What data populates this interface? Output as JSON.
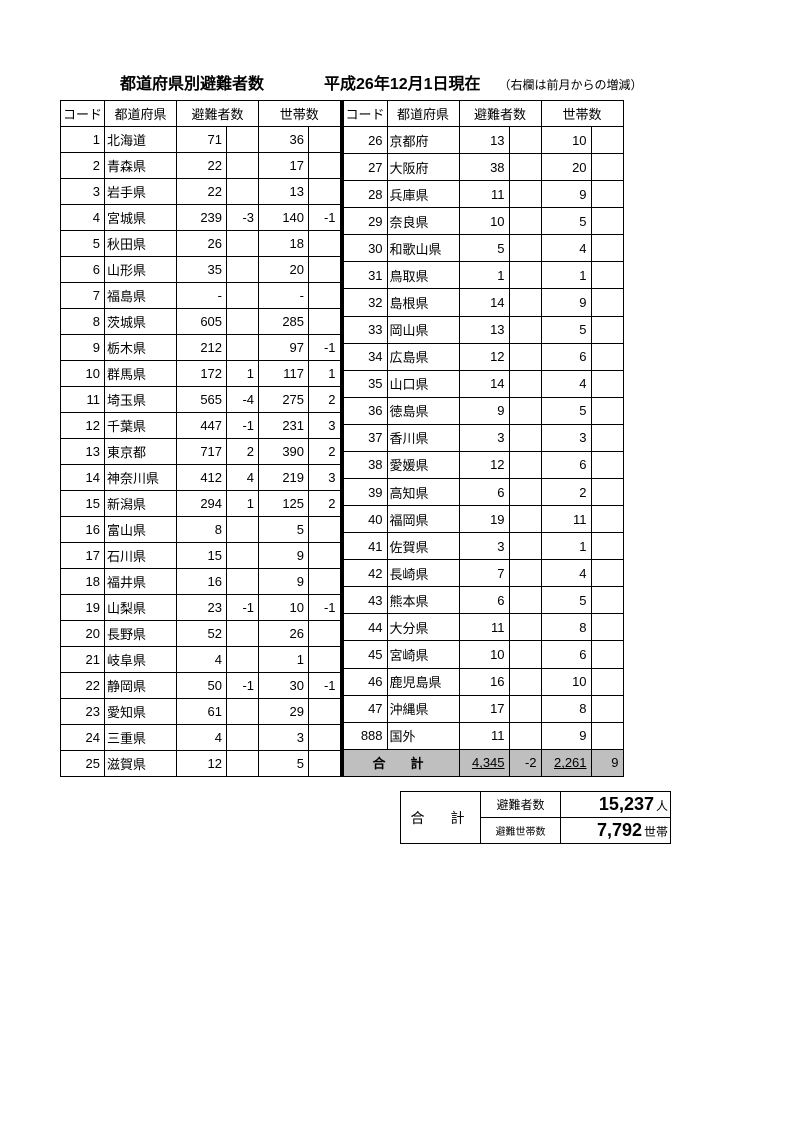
{
  "header": {
    "title": "都道府県別避難者数",
    "date": "平成26年12月1日現在",
    "note": "（右欄は前月からの増減）"
  },
  "columns": {
    "code": "コード",
    "pref": "都道府県",
    "count": "避難者数",
    "households": "世帯数"
  },
  "left_rows": [
    {
      "code": "1",
      "pref": "北海道",
      "cnt": "71",
      "dcnt": "",
      "hh": "36",
      "dhh": ""
    },
    {
      "code": "2",
      "pref": "青森県",
      "cnt": "22",
      "dcnt": "",
      "hh": "17",
      "dhh": ""
    },
    {
      "code": "3",
      "pref": "岩手県",
      "cnt": "22",
      "dcnt": "",
      "hh": "13",
      "dhh": ""
    },
    {
      "code": "4",
      "pref": "宮城県",
      "cnt": "239",
      "dcnt": "-3",
      "hh": "140",
      "dhh": "-1"
    },
    {
      "code": "5",
      "pref": "秋田県",
      "cnt": "26",
      "dcnt": "",
      "hh": "18",
      "dhh": ""
    },
    {
      "code": "6",
      "pref": "山形県",
      "cnt": "35",
      "dcnt": "",
      "hh": "20",
      "dhh": ""
    },
    {
      "code": "7",
      "pref": "福島県",
      "cnt": "-",
      "dcnt": "",
      "hh": "-",
      "dhh": ""
    },
    {
      "code": "8",
      "pref": "茨城県",
      "cnt": "605",
      "dcnt": "",
      "hh": "285",
      "dhh": ""
    },
    {
      "code": "9",
      "pref": "栃木県",
      "cnt": "212",
      "dcnt": "",
      "hh": "97",
      "dhh": "-1"
    },
    {
      "code": "10",
      "pref": "群馬県",
      "cnt": "172",
      "dcnt": "1",
      "hh": "117",
      "dhh": "1"
    },
    {
      "code": "11",
      "pref": "埼玉県",
      "cnt": "565",
      "dcnt": "-4",
      "hh": "275",
      "dhh": "2"
    },
    {
      "code": "12",
      "pref": "千葉県",
      "cnt": "447",
      "dcnt": "-1",
      "hh": "231",
      "dhh": "3"
    },
    {
      "code": "13",
      "pref": "東京都",
      "cnt": "717",
      "dcnt": "2",
      "hh": "390",
      "dhh": "2"
    },
    {
      "code": "14",
      "pref": "神奈川県",
      "cnt": "412",
      "dcnt": "4",
      "hh": "219",
      "dhh": "3"
    },
    {
      "code": "15",
      "pref": "新潟県",
      "cnt": "294",
      "dcnt": "1",
      "hh": "125",
      "dhh": "2"
    },
    {
      "code": "16",
      "pref": "富山県",
      "cnt": "8",
      "dcnt": "",
      "hh": "5",
      "dhh": ""
    },
    {
      "code": "17",
      "pref": "石川県",
      "cnt": "15",
      "dcnt": "",
      "hh": "9",
      "dhh": ""
    },
    {
      "code": "18",
      "pref": "福井県",
      "cnt": "16",
      "dcnt": "",
      "hh": "9",
      "dhh": ""
    },
    {
      "code": "19",
      "pref": "山梨県",
      "cnt": "23",
      "dcnt": "-1",
      "hh": "10",
      "dhh": "-1"
    },
    {
      "code": "20",
      "pref": "長野県",
      "cnt": "52",
      "dcnt": "",
      "hh": "26",
      "dhh": ""
    },
    {
      "code": "21",
      "pref": "岐阜県",
      "cnt": "4",
      "dcnt": "",
      "hh": "1",
      "dhh": ""
    },
    {
      "code": "22",
      "pref": "静岡県",
      "cnt": "50",
      "dcnt": "-1",
      "hh": "30",
      "dhh": "-1"
    },
    {
      "code": "23",
      "pref": "愛知県",
      "cnt": "61",
      "dcnt": "",
      "hh": "29",
      "dhh": ""
    },
    {
      "code": "24",
      "pref": "三重県",
      "cnt": "4",
      "dcnt": "",
      "hh": "3",
      "dhh": ""
    },
    {
      "code": "25",
      "pref": "滋賀県",
      "cnt": "12",
      "dcnt": "",
      "hh": "5",
      "dhh": ""
    }
  ],
  "right_rows": [
    {
      "code": "26",
      "pref": "京都府",
      "cnt": "13",
      "dcnt": "",
      "hh": "10",
      "dhh": ""
    },
    {
      "code": "27",
      "pref": "大阪府",
      "cnt": "38",
      "dcnt": "",
      "hh": "20",
      "dhh": ""
    },
    {
      "code": "28",
      "pref": "兵庫県",
      "cnt": "11",
      "dcnt": "",
      "hh": "9",
      "dhh": ""
    },
    {
      "code": "29",
      "pref": "奈良県",
      "cnt": "10",
      "dcnt": "",
      "hh": "5",
      "dhh": ""
    },
    {
      "code": "30",
      "pref": "和歌山県",
      "cnt": "5",
      "dcnt": "",
      "hh": "4",
      "dhh": ""
    },
    {
      "code": "31",
      "pref": "鳥取県",
      "cnt": "1",
      "dcnt": "",
      "hh": "1",
      "dhh": ""
    },
    {
      "code": "32",
      "pref": "島根県",
      "cnt": "14",
      "dcnt": "",
      "hh": "9",
      "dhh": ""
    },
    {
      "code": "33",
      "pref": "岡山県",
      "cnt": "13",
      "dcnt": "",
      "hh": "5",
      "dhh": ""
    },
    {
      "code": "34",
      "pref": "広島県",
      "cnt": "12",
      "dcnt": "",
      "hh": "6",
      "dhh": ""
    },
    {
      "code": "35",
      "pref": "山口県",
      "cnt": "14",
      "dcnt": "",
      "hh": "4",
      "dhh": ""
    },
    {
      "code": "36",
      "pref": "徳島県",
      "cnt": "9",
      "dcnt": "",
      "hh": "5",
      "dhh": ""
    },
    {
      "code": "37",
      "pref": "香川県",
      "cnt": "3",
      "dcnt": "",
      "hh": "3",
      "dhh": ""
    },
    {
      "code": "38",
      "pref": "愛媛県",
      "cnt": "12",
      "dcnt": "",
      "hh": "6",
      "dhh": ""
    },
    {
      "code": "39",
      "pref": "高知県",
      "cnt": "6",
      "dcnt": "",
      "hh": "2",
      "dhh": ""
    },
    {
      "code": "40",
      "pref": "福岡県",
      "cnt": "19",
      "dcnt": "",
      "hh": "11",
      "dhh": ""
    },
    {
      "code": "41",
      "pref": "佐賀県",
      "cnt": "3",
      "dcnt": "",
      "hh": "1",
      "dhh": ""
    },
    {
      "code": "42",
      "pref": "長崎県",
      "cnt": "7",
      "dcnt": "",
      "hh": "4",
      "dhh": ""
    },
    {
      "code": "43",
      "pref": "熊本県",
      "cnt": "6",
      "dcnt": "",
      "hh": "5",
      "dhh": ""
    },
    {
      "code": "44",
      "pref": "大分県",
      "cnt": "11",
      "dcnt": "",
      "hh": "8",
      "dhh": ""
    },
    {
      "code": "45",
      "pref": "宮崎県",
      "cnt": "10",
      "dcnt": "",
      "hh": "6",
      "dhh": ""
    },
    {
      "code": "46",
      "pref": "鹿児島県",
      "cnt": "16",
      "dcnt": "",
      "hh": "10",
      "dhh": ""
    },
    {
      "code": "47",
      "pref": "沖縄県",
      "cnt": "17",
      "dcnt": "",
      "hh": "8",
      "dhh": ""
    },
    {
      "code": "888",
      "pref": "国外",
      "cnt": "11",
      "dcnt": "",
      "hh": "9",
      "dhh": ""
    }
  ],
  "subtotal": {
    "label": "合　計",
    "cnt": "4,345",
    "dcnt": "-2",
    "hh": "2,261",
    "dhh": "9"
  },
  "grand": {
    "label": "合　計",
    "count_label": "避難者数",
    "count_value": "15,237",
    "count_unit": "人",
    "hh_label": "避難世帯数",
    "hh_value": "7,792",
    "hh_unit": "世帯"
  },
  "colors": {
    "border": "#000000",
    "shade": "#bfbfbf",
    "background": "#ffffff",
    "text": "#000000"
  }
}
